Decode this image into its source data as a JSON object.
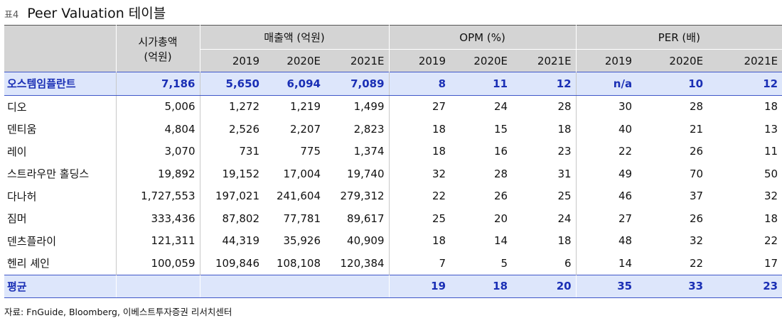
{
  "title": {
    "num": "표4",
    "text": "Peer Valuation 테이블"
  },
  "headers": {
    "market_cap": [
      "시가총액",
      "(억원)"
    ],
    "sales": "매출액 (억원)",
    "opm": "OPM (%)",
    "per": "PER (배)",
    "years": [
      "2019",
      "2020E",
      "2021E"
    ]
  },
  "rows": [
    {
      "name": "오스템임플란트",
      "cap": "7,186",
      "sales": [
        "5,650",
        "6,094",
        "7,089"
      ],
      "opm": [
        "8",
        "11",
        "12"
      ],
      "per": [
        "n/a",
        "10",
        "12"
      ]
    },
    {
      "name": "디오",
      "cap": "5,006",
      "sales": [
        "1,272",
        "1,219",
        "1,499"
      ],
      "opm": [
        "27",
        "24",
        "28"
      ],
      "per": [
        "30",
        "28",
        "18"
      ]
    },
    {
      "name": "덴티움",
      "cap": "4,804",
      "sales": [
        "2,526",
        "2,207",
        "2,823"
      ],
      "opm": [
        "18",
        "15",
        "18"
      ],
      "per": [
        "40",
        "21",
        "13"
      ]
    },
    {
      "name": "레이",
      "cap": "3,070",
      "sales": [
        "731",
        "775",
        "1,374"
      ],
      "opm": [
        "18",
        "16",
        "23"
      ],
      "per": [
        "22",
        "26",
        "11"
      ]
    },
    {
      "name": "스트라우만 홀딩스",
      "cap": "19,892",
      "sales": [
        "19,152",
        "17,004",
        "19,740"
      ],
      "opm": [
        "32",
        "28",
        "31"
      ],
      "per": [
        "49",
        "70",
        "50"
      ]
    },
    {
      "name": "다나허",
      "cap": "1,727,553",
      "sales": [
        "197,021",
        "241,604",
        "279,312"
      ],
      "opm": [
        "22",
        "26",
        "25"
      ],
      "per": [
        "46",
        "37",
        "32"
      ]
    },
    {
      "name": "짐머",
      "cap": "333,436",
      "sales": [
        "87,802",
        "77,781",
        "89,617"
      ],
      "opm": [
        "25",
        "20",
        "24"
      ],
      "per": [
        "27",
        "26",
        "18"
      ]
    },
    {
      "name": "덴츠플라이",
      "cap": "121,311",
      "sales": [
        "44,319",
        "35,926",
        "40,909"
      ],
      "opm": [
        "18",
        "14",
        "18"
      ],
      "per": [
        "48",
        "32",
        "22"
      ]
    },
    {
      "name": "헨리 셰인",
      "cap": "100,059",
      "sales": [
        "109,846",
        "108,108",
        "120,384"
      ],
      "opm": [
        "7",
        "5",
        "6"
      ],
      "per": [
        "14",
        "22",
        "17"
      ]
    }
  ],
  "average": {
    "name": "평균",
    "opm": [
      "19",
      "18",
      "20"
    ],
    "per": [
      "35",
      "33",
      "23"
    ]
  },
  "source": "자료: FnGuide, Bloomberg, 이베스트투자증권 리서치센터",
  "colors": {
    "header_bg": "#d4d4d4",
    "highlight_bg": "#dde6fb",
    "highlight_text": "#1a2fb5"
  }
}
